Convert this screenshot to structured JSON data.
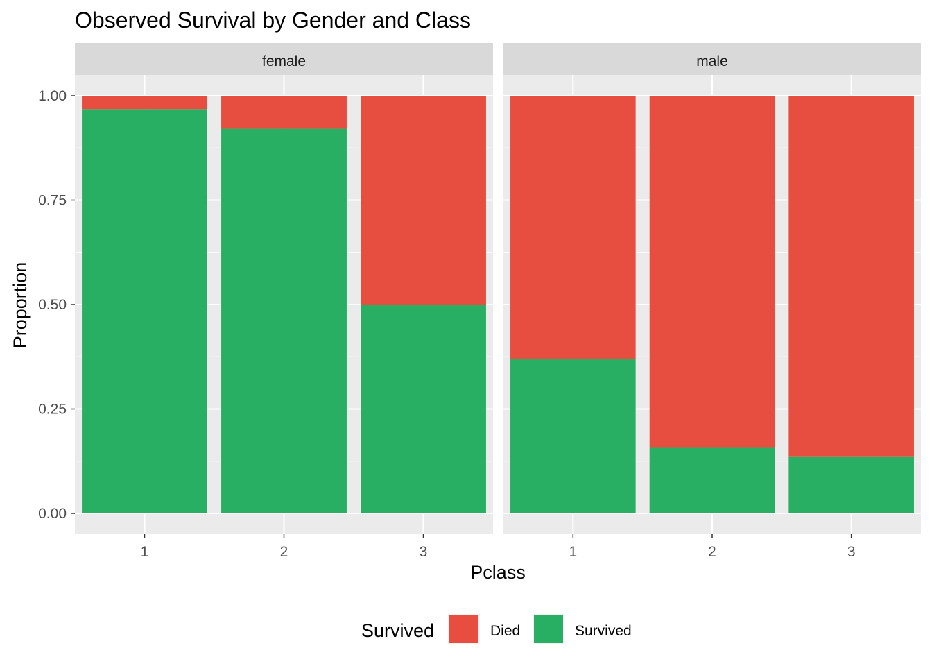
{
  "chart_data": {
    "type": "bar",
    "stacked": true,
    "title": "Observed Survival by Gender and Class",
    "xlabel": "Pclass",
    "ylabel": "Proportion",
    "ylim": [
      0,
      1.05
    ],
    "y_ticks": [
      "0.00",
      "0.25",
      "0.50",
      "0.75",
      "1.00"
    ],
    "y_tick_values": [
      0,
      0.25,
      0.5,
      0.75,
      1.0
    ],
    "categories": [
      "1",
      "2",
      "3"
    ],
    "legend": {
      "title": "Survived",
      "position": "bottom",
      "entries": [
        {
          "label": "Died",
          "color": "#E84E3F"
        },
        {
          "label": "Survived",
          "color": "#28AF63"
        }
      ]
    },
    "panels": [
      {
        "label": "female",
        "series": [
          {
            "name": "Survived",
            "values": [
              0.968,
              0.921,
              0.5
            ]
          },
          {
            "name": "Died",
            "values": [
              0.032,
              0.079,
              0.5
            ]
          }
        ]
      },
      {
        "label": "male",
        "series": [
          {
            "name": "Survived",
            "values": [
              0.369,
              0.157,
              0.135
            ]
          },
          {
            "name": "Died",
            "values": [
              0.631,
              0.843,
              0.865
            ]
          }
        ]
      }
    ],
    "grid": true
  }
}
